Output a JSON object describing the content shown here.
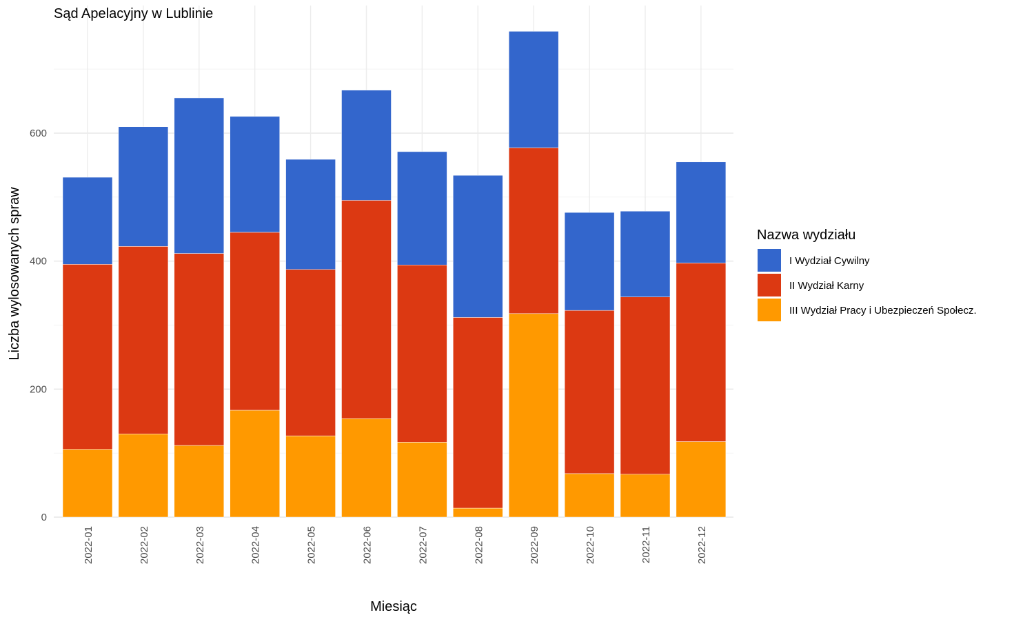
{
  "chart_data": {
    "type": "bar",
    "stacked": true,
    "title": "Sąd Apelacyjny w Lublinie",
    "xlabel": "Miesiąc",
    "ylabel": "Liczba wylosowanych spraw",
    "ylim": [
      0,
      800
    ],
    "yticks": [
      0,
      200,
      400,
      600
    ],
    "grid": true,
    "legend_position": "right",
    "legend_title": "Nazwa wydziału",
    "categories": [
      "2022-01",
      "2022-02",
      "2022-03",
      "2022-04",
      "2022-05",
      "2022-06",
      "2022-07",
      "2022-08",
      "2022-09",
      "2022-10",
      "2022-11",
      "2022-12"
    ],
    "series": [
      {
        "name": "III Wydział Pracy i Ubezpieczeń Społecz.",
        "color": "#FF9900",
        "values": [
          106,
          130,
          112,
          167,
          127,
          154,
          117,
          14,
          318,
          68,
          67,
          118
        ]
      },
      {
        "name": "II Wydział Karny",
        "color": "#DC3912",
        "values": [
          289,
          293,
          300,
          278,
          260,
          341,
          277,
          298,
          259,
          255,
          277,
          279
        ]
      },
      {
        "name": "I Wydział Cywilny",
        "color": "#3366CC",
        "values": [
          136,
          187,
          243,
          181,
          172,
          172,
          177,
          222,
          182,
          153,
          134,
          158
        ]
      }
    ],
    "legend_order": [
      "I Wydział Cywilny",
      "II Wydział Karny",
      "III Wydział Pracy i Ubezpieczeń Społecz."
    ]
  }
}
